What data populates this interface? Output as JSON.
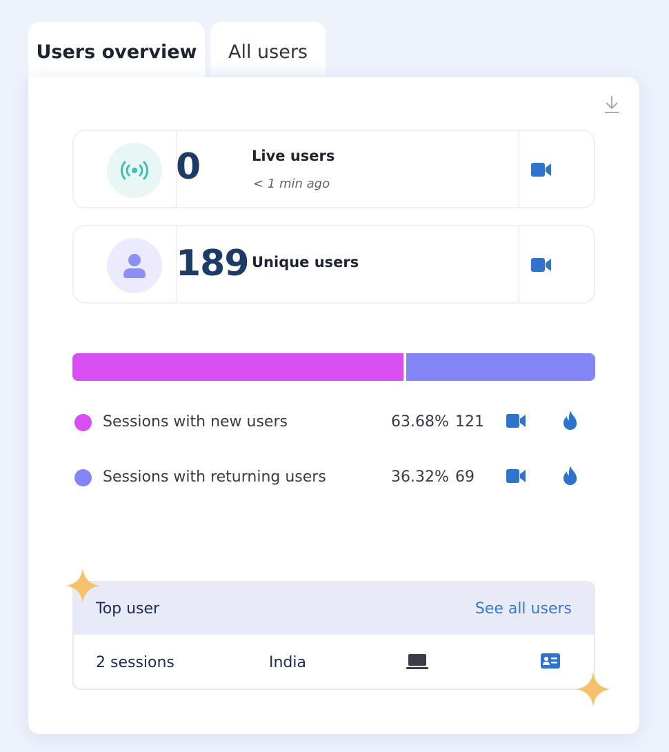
{
  "tabs": [
    {
      "label": "Users overview",
      "active": true
    },
    {
      "label": "All users",
      "active": false
    }
  ],
  "icons": {
    "download": "download-icon",
    "broadcast": "broadcast-icon",
    "user": "user-icon",
    "video": "video-camera-icon",
    "flame": "flame-icon",
    "laptop": "laptop-icon",
    "id_card": "id-card-icon",
    "sparkle": "sparkle-icon"
  },
  "live_users": {
    "value": "0",
    "label": "Live users",
    "updated": "< 1 min ago"
  },
  "unique_users": {
    "value": "189",
    "label": "Unique users"
  },
  "sessions": {
    "new": {
      "label": "Sessions with new users",
      "percent": "63.68%",
      "count": "121",
      "fraction": 0.6368
    },
    "returning": {
      "label": "Sessions with returning users",
      "percent": "36.32%",
      "count": "69",
      "fraction": 0.3632
    }
  },
  "top_user": {
    "title": "Top user",
    "link": "See all users",
    "sessions": "2 sessions",
    "country": "India"
  },
  "colors": {
    "new_sessions": "#d94ef2",
    "returning_sessions": "#8385f6",
    "accent_blue": "#2f74cc",
    "value_text": "#1c3b66",
    "sparkle": "#f5c26b"
  }
}
